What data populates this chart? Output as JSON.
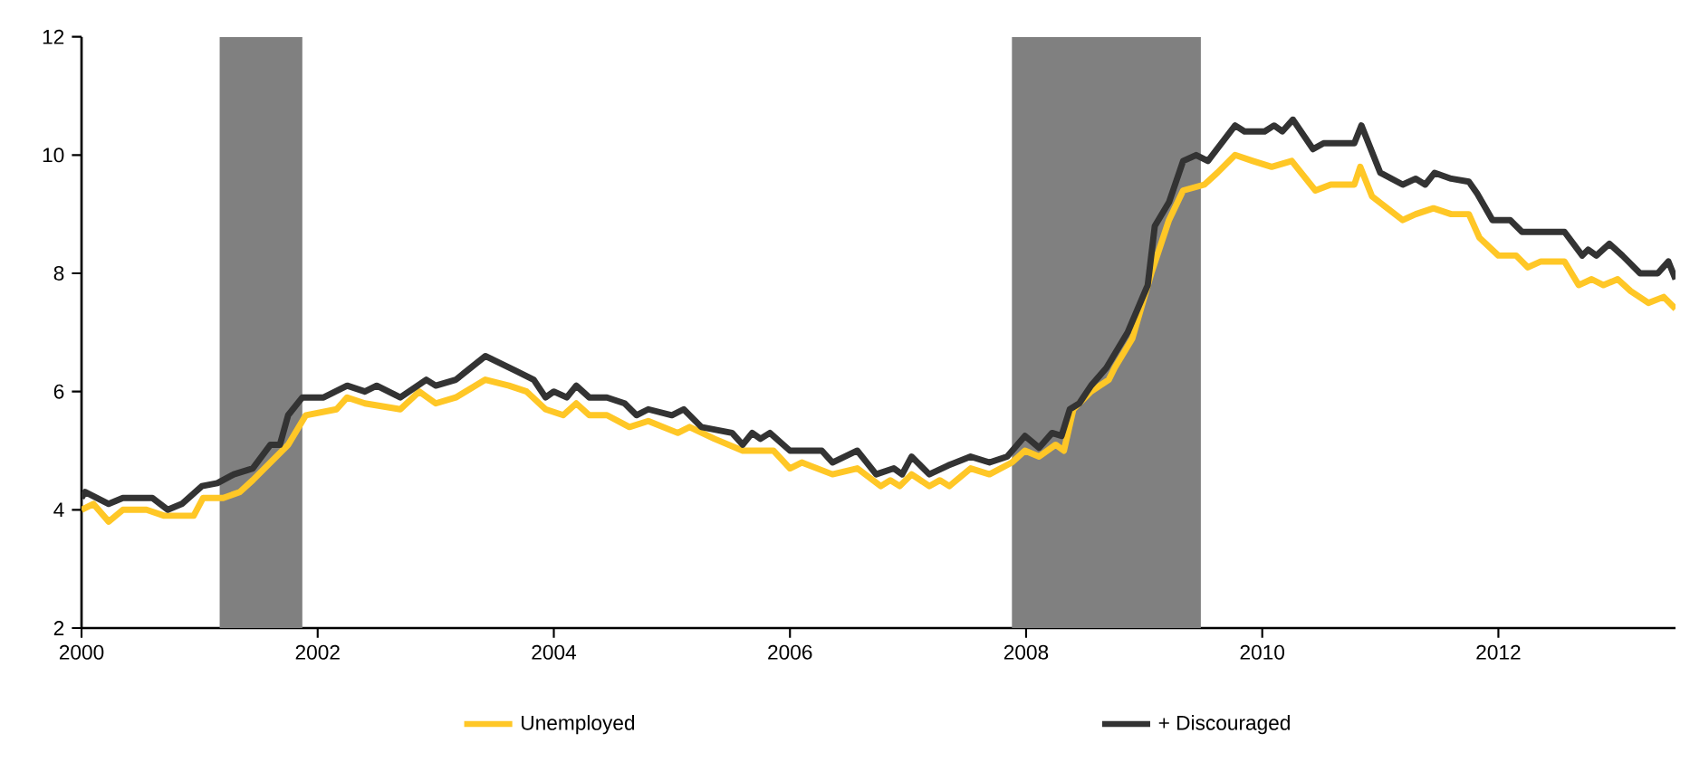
{
  "chart_data": {
    "type": "line",
    "xlim": [
      2000,
      2013.5
    ],
    "ylim": [
      2,
      12
    ],
    "xticks": [
      2000,
      2002,
      2004,
      2006,
      2008,
      2010,
      2012
    ],
    "yticks": [
      2,
      4,
      6,
      8,
      10,
      12
    ],
    "legend": "bottom",
    "bands": [
      {
        "axis": "x",
        "from": 2001.17,
        "to": 2001.87,
        "color": "#808080"
      },
      {
        "axis": "x",
        "from": 2007.88,
        "to": 2009.48,
        "color": "#808080"
      }
    ],
    "series": [
      {
        "name": "Unemployed",
        "color": "#ffc726",
        "x": [
          2000,
          2000.1,
          2000.23,
          2000.35,
          2000.55,
          2000.7,
          2000.95,
          2001.03,
          2001.2,
          2001.34,
          2001.45,
          2001.6,
          2001.75,
          2001.9,
          2002.16,
          2002.25,
          2002.4,
          2002.7,
          2002.86,
          2003.0,
          2003.17,
          2003.42,
          2003.62,
          2003.77,
          2003.93,
          2004.08,
          2004.19,
          2004.3,
          2004.45,
          2004.64,
          2004.8,
          2005.05,
          2005.15,
          2005.36,
          2005.6,
          2005.7,
          2005.86,
          2006.0,
          2006.1,
          2006.36,
          2006.57,
          2006.77,
          2006.85,
          2006.93,
          2007.03,
          2007.18,
          2007.27,
          2007.35,
          2007.53,
          2007.69,
          2007.88,
          2007.99,
          2008.11,
          2008.25,
          2008.32,
          2008.4,
          2008.55,
          2008.7,
          2008.75,
          2008.9,
          2009.06,
          2009.21,
          2009.33,
          2009.51,
          2009.62,
          2009.77,
          2009.92,
          2010.08,
          2010.25,
          2010.45,
          2010.58,
          2010.78,
          2010.83,
          2010.93,
          2011.19,
          2011.3,
          2011.45,
          2011.6,
          2011.75,
          2011.84,
          2012.0,
          2012.15,
          2012.25,
          2012.36,
          2012.56,
          2012.68,
          2012.79,
          2012.89,
          2013.01,
          2013.12,
          2013.27,
          2013.4,
          2013.5
        ],
        "values": [
          4.0,
          4.1,
          3.8,
          4.0,
          4.0,
          3.9,
          3.9,
          4.2,
          4.2,
          4.3,
          4.5,
          4.8,
          5.1,
          5.6,
          5.7,
          5.9,
          5.8,
          5.7,
          6.0,
          5.8,
          5.9,
          6.2,
          6.1,
          6.0,
          5.7,
          5.6,
          5.8,
          5.6,
          5.6,
          5.4,
          5.5,
          5.3,
          5.4,
          5.2,
          5.0,
          5.0,
          5.0,
          4.7,
          4.8,
          4.6,
          4.7,
          4.4,
          4.5,
          4.4,
          4.6,
          4.4,
          4.5,
          4.4,
          4.7,
          4.6,
          4.8,
          5.0,
          4.9,
          5.1,
          5.0,
          5.7,
          6.0,
          6.2,
          6.4,
          6.9,
          8.0,
          8.9,
          9.4,
          9.5,
          9.7,
          10.0,
          9.9,
          9.8,
          9.9,
          9.4,
          9.5,
          9.5,
          9.8,
          9.3,
          8.9,
          9.0,
          9.1,
          9.0,
          9.0,
          8.6,
          8.3,
          8.3,
          8.1,
          8.2,
          8.2,
          7.8,
          7.9,
          7.8,
          7.9,
          7.7,
          7.5,
          7.6,
          7.4
        ]
      },
      {
        "name": "+ Discouraged",
        "color": "#333333",
        "x": [
          2000,
          2000.03,
          2000.23,
          2000.35,
          2000.6,
          2000.73,
          2000.85,
          2001.02,
          2001.15,
          2001.29,
          2001.45,
          2001.6,
          2001.68,
          2001.75,
          2001.87,
          2002.05,
          2002.25,
          2002.4,
          2002.5,
          2002.7,
          2002.92,
          2003.0,
          2003.17,
          2003.42,
          2003.68,
          2003.83,
          2003.93,
          2004.0,
          2004.11,
          2004.19,
          2004.3,
          2004.45,
          2004.6,
          2004.7,
          2004.8,
          2005.0,
          2005.1,
          2005.25,
          2005.51,
          2005.6,
          2005.68,
          2005.75,
          2005.83,
          2006.0,
          2006.27,
          2006.36,
          2006.57,
          2006.73,
          2006.88,
          2006.95,
          2007.03,
          2007.18,
          2007.34,
          2007.53,
          2007.69,
          2007.84,
          2007.99,
          2008.11,
          2008.22,
          2008.3,
          2008.37,
          2008.45,
          2008.55,
          2008.68,
          2008.86,
          2009.03,
          2009.09,
          2009.21,
          2009.33,
          2009.44,
          2009.54,
          2009.77,
          2009.85,
          2010.02,
          2010.1,
          2010.17,
          2010.26,
          2010.43,
          2010.52,
          2010.78,
          2010.84,
          2011.0,
          2011.19,
          2011.3,
          2011.38,
          2011.46,
          2011.6,
          2011.75,
          2011.82,
          2011.95,
          2012.1,
          2012.2,
          2012.56,
          2012.71,
          2012.76,
          2012.83,
          2012.94,
          2013.05,
          2013.2,
          2013.35,
          2013.44,
          2013.5
        ],
        "values": [
          4.2,
          4.3,
          4.1,
          4.2,
          4.2,
          4.0,
          4.1,
          4.4,
          4.45,
          4.6,
          4.7,
          5.1,
          5.1,
          5.6,
          5.9,
          5.9,
          6.1,
          6.0,
          6.1,
          5.9,
          6.2,
          6.1,
          6.2,
          6.6,
          6.35,
          6.2,
          5.9,
          6.0,
          5.9,
          6.1,
          5.9,
          5.9,
          5.8,
          5.6,
          5.7,
          5.6,
          5.7,
          5.4,
          5.3,
          5.1,
          5.3,
          5.2,
          5.3,
          5.0,
          5.0,
          4.8,
          5.0,
          4.6,
          4.7,
          4.6,
          4.9,
          4.6,
          4.75,
          4.9,
          4.8,
          4.9,
          5.25,
          5.05,
          5.3,
          5.25,
          5.7,
          5.8,
          6.1,
          6.4,
          7.0,
          7.8,
          8.8,
          9.2,
          9.9,
          10.0,
          9.9,
          10.5,
          10.4,
          10.4,
          10.5,
          10.4,
          10.6,
          10.1,
          10.2,
          10.2,
          10.5,
          9.7,
          9.5,
          9.6,
          9.5,
          9.7,
          9.6,
          9.55,
          9.35,
          8.9,
          8.9,
          8.7,
          8.7,
          8.3,
          8.4,
          8.3,
          8.5,
          8.3,
          8.0,
          8.0,
          8.2,
          7.9
        ]
      }
    ]
  }
}
